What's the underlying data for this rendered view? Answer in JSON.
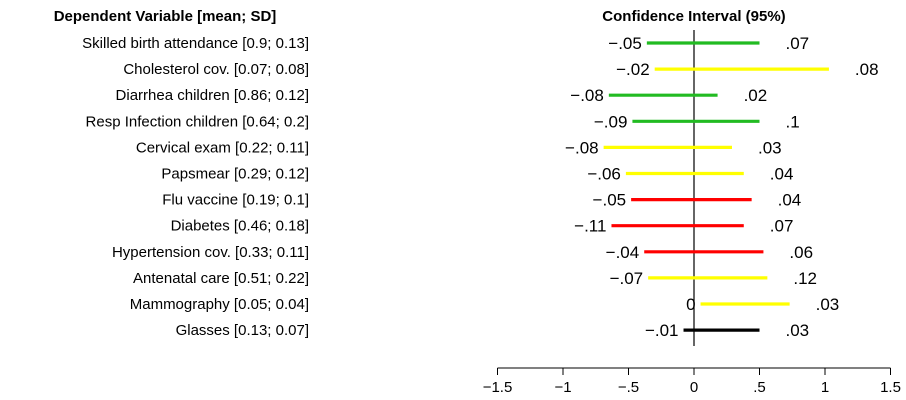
{
  "chart_data": {
    "type": "forest",
    "left_header": "Dependent Variable [mean; SD]",
    "right_header": "Confidence Interval (95%)",
    "xlim": [
      -1.5,
      1.5
    ],
    "x_ticks": [
      {
        "value": -1.5,
        "label": "−1.5"
      },
      {
        "value": -1,
        "label": "−1"
      },
      {
        "value": -0.5,
        "label": "−.5"
      },
      {
        "value": 0,
        "label": "0"
      },
      {
        "value": 0.5,
        "label": ".5"
      },
      {
        "value": 1,
        "label": "1"
      },
      {
        "value": 1.5,
        "label": "1.5"
      }
    ],
    "rows": [
      {
        "label": "Skilled birth attendance  [0.9; 0.13]",
        "low": -0.36,
        "high": 0.5,
        "low_label": "−.05",
        "high_label": ".07",
        "color": "#22bb22"
      },
      {
        "label": "Cholesterol cov.  [0.07; 0.08]",
        "low": -0.3,
        "high": 1.03,
        "low_label": "−.02",
        "high_label": ".08",
        "color": "#ffff00"
      },
      {
        "label": "Diarrhea children  [0.86; 0.12]",
        "low": -0.65,
        "high": 0.18,
        "low_label": "−.08",
        "high_label": ".02",
        "color": "#22bb22"
      },
      {
        "label": "Resp Infection children  [0.64; 0.2]",
        "low": -0.47,
        "high": 0.5,
        "low_label": "−.09",
        "high_label": ".1",
        "color": "#22bb22"
      },
      {
        "label": "Cervical exam  [0.22; 0.11]",
        "low": -0.69,
        "high": 0.29,
        "low_label": "−.08",
        "high_label": ".03",
        "color": "#ffff00"
      },
      {
        "label": "Papsmear  [0.29; 0.12]",
        "low": -0.52,
        "high": 0.38,
        "low_label": "−.06",
        "high_label": ".04",
        "color": "#ffff00"
      },
      {
        "label": "Flu vaccine  [0.19; 0.1]",
        "low": -0.48,
        "high": 0.44,
        "low_label": "−.05",
        "high_label": ".04",
        "color": "#ff0000"
      },
      {
        "label": "Diabetes  [0.46; 0.18]",
        "low": -0.63,
        "high": 0.38,
        "low_label": "−.11",
        "high_label": ".07",
        "color": "#ff0000"
      },
      {
        "label": "Hypertension cov.  [0.33; 0.11]",
        "low": -0.38,
        "high": 0.53,
        "low_label": "−.04",
        "high_label": ".06",
        "color": "#ff0000"
      },
      {
        "label": "Antenatal care  [0.51; 0.22]",
        "low": -0.35,
        "high": 0.56,
        "low_label": "−.07",
        "high_label": ".12",
        "color": "#ffff00"
      },
      {
        "label": "Mammography  [0.05; 0.04]",
        "low": 0.05,
        "high": 0.73,
        "low_label": "0",
        "high_label": ".03",
        "color": "#ffff00"
      },
      {
        "label": "Glasses  [0.13; 0.07]",
        "low": -0.08,
        "high": 0.5,
        "low_label": "−.01",
        "high_label": ".03",
        "color": "#000000"
      }
    ]
  }
}
